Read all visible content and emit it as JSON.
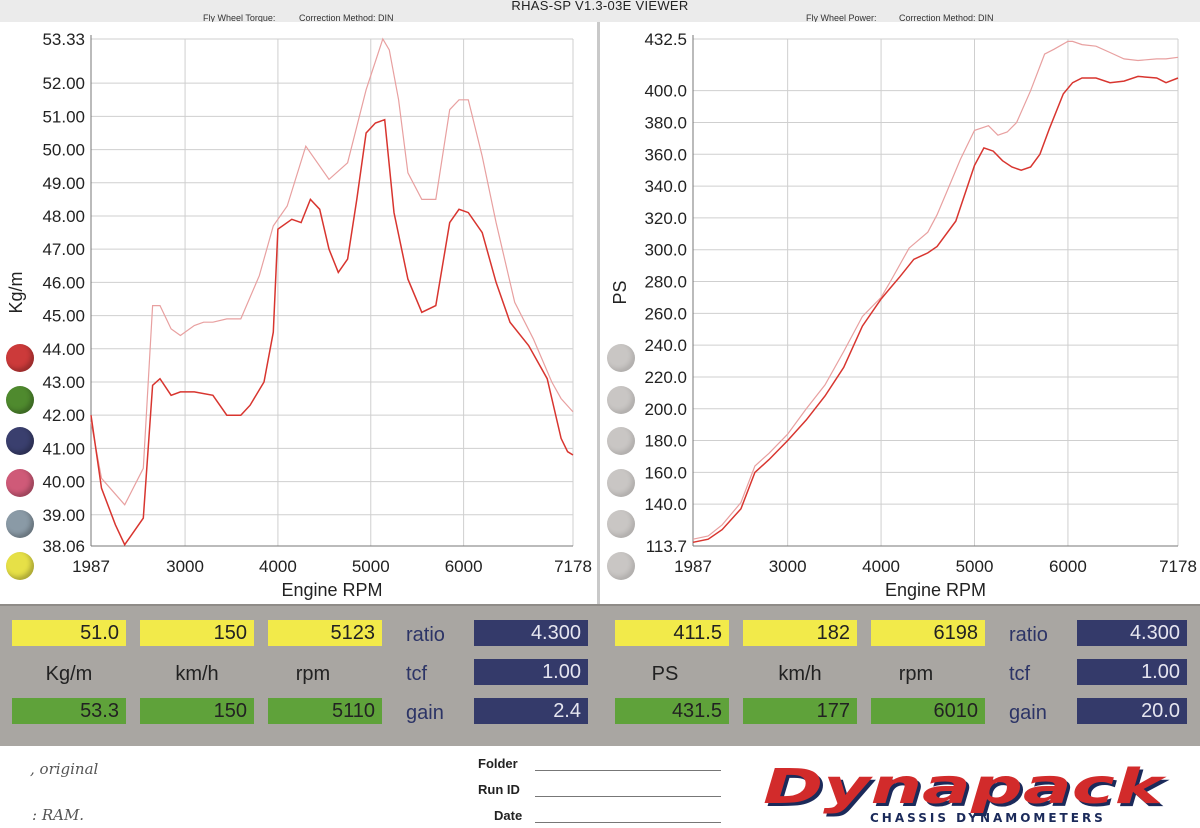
{
  "title": "RHAS-SP V1.3-03E VIEWER",
  "left_header": {
    "measure": "Fly Wheel Torque:",
    "method": "Correction Method: DIN"
  },
  "right_header": {
    "measure": "Fly Wheel Power:",
    "method": "Correction Method: DIN"
  },
  "chart_data": [
    {
      "type": "line",
      "xlabel": "Engine RPM",
      "ylabel": "Kg/m",
      "xlim": [
        1987,
        7178
      ],
      "ylim": [
        38.06,
        53.33
      ],
      "xticks": [
        "1987",
        "3000",
        "4000",
        "5000",
        "6000",
        "7178"
      ],
      "yticks": [
        "53.33",
        "52.00",
        "51.00",
        "50.00",
        "49.00",
        "48.00",
        "47.00",
        "46.00",
        "45.00",
        "44.00",
        "43.00",
        "42.00",
        "41.00",
        "40.00",
        "39.00",
        "38.06"
      ],
      "grid": true,
      "series": [
        {
          "color": "#e8a0a0",
          "x": [
            1987,
            2100,
            2350,
            2550,
            2650,
            2730,
            2850,
            2950,
            3100,
            3200,
            3300,
            3450,
            3600,
            3800,
            3950,
            4100,
            4300,
            4550,
            4750,
            4950,
            5130,
            5200,
            5300,
            5400,
            5550,
            5700,
            5850,
            5950,
            6050,
            6200,
            6350,
            6550,
            6750,
            6950,
            7050,
            7178
          ],
          "values": [
            41.8,
            40.1,
            39.3,
            40.4,
            45.3,
            45.3,
            44.6,
            44.4,
            44.7,
            44.8,
            44.8,
            44.9,
            44.9,
            46.2,
            47.7,
            48.3,
            50.1,
            49.1,
            49.6,
            51.8,
            53.33,
            53.0,
            51.5,
            49.3,
            48.5,
            48.5,
            51.2,
            51.5,
            51.5,
            49.8,
            47.8,
            45.4,
            44.3,
            43.0,
            42.5,
            42.1
          ]
        },
        {
          "color": "#d8352f",
          "x": [
            1987,
            2100,
            2250,
            2350,
            2550,
            2650,
            2730,
            2850,
            2950,
            3100,
            3300,
            3450,
            3600,
            3700,
            3850,
            3950,
            4000,
            4150,
            4250,
            4350,
            4450,
            4550,
            4650,
            4750,
            4850,
            4950,
            5050,
            5150,
            5250,
            5400,
            5550,
            5700,
            5850,
            5950,
            6050,
            6200,
            6350,
            6500,
            6700,
            6900,
            7050,
            7120,
            7178
          ],
          "values": [
            42.0,
            39.8,
            38.7,
            38.1,
            38.9,
            42.9,
            43.1,
            42.6,
            42.7,
            42.7,
            42.6,
            42.0,
            42.0,
            42.3,
            43.0,
            44.5,
            47.6,
            47.9,
            47.8,
            48.5,
            48.2,
            47.0,
            46.3,
            46.7,
            48.5,
            50.5,
            50.8,
            50.9,
            48.1,
            46.1,
            45.1,
            45.3,
            47.8,
            48.2,
            48.1,
            47.5,
            46.0,
            44.8,
            44.1,
            43.1,
            41.3,
            40.9,
            40.8
          ]
        }
      ]
    },
    {
      "type": "line",
      "xlabel": "Engine RPM",
      "ylabel": "PS",
      "xlim": [
        1987,
        7178
      ],
      "ylim": [
        113.7,
        432.5
      ],
      "xticks": [
        "1987",
        "3000",
        "4000",
        "5000",
        "6000",
        "7178"
      ],
      "yticks": [
        "432.5",
        "400.0",
        "380.0",
        "360.0",
        "340.0",
        "320.0",
        "300.0",
        "280.0",
        "260.0",
        "240.0",
        "220.0",
        "200.0",
        "180.0",
        "160.0",
        "140.0",
        "113.7"
      ],
      "grid": true,
      "series": [
        {
          "color": "#e8a0a0",
          "x": [
            1987,
            2150,
            2300,
            2500,
            2650,
            2800,
            3000,
            3200,
            3400,
            3600,
            3800,
            4000,
            4100,
            4300,
            4500,
            4600,
            4700,
            4850,
            5000,
            5150,
            5250,
            5350,
            5450,
            5600,
            5750,
            5850,
            6000,
            6050,
            6150,
            6300,
            6450,
            6600,
            6750,
            6950,
            7050,
            7178
          ],
          "values": [
            118,
            120,
            127,
            141,
            164,
            172,
            184,
            200,
            215,
            236,
            258,
            270,
            280,
            301,
            311,
            322,
            336,
            357,
            375,
            378,
            372,
            374,
            380,
            400,
            423,
            426,
            431,
            431,
            429,
            428,
            424,
            420,
            419,
            420,
            420,
            421
          ]
        },
        {
          "color": "#d8352f",
          "x": [
            1987,
            2150,
            2300,
            2500,
            2650,
            2800,
            3000,
            3200,
            3400,
            3600,
            3800,
            4000,
            4100,
            4200,
            4350,
            4500,
            4600,
            4800,
            5000,
            5100,
            5200,
            5300,
            5400,
            5500,
            5600,
            5700,
            5800,
            5950,
            6050,
            6150,
            6300,
            6450,
            6600,
            6750,
            6950,
            7050,
            7178
          ],
          "values": [
            116,
            118,
            124,
            137,
            160,
            168,
            180,
            193,
            208,
            226,
            252,
            269,
            276,
            283,
            294,
            298,
            302,
            318,
            353,
            364,
            362,
            356,
            352,
            350,
            352,
            360,
            376,
            398,
            405,
            408,
            408,
            405,
            406,
            409,
            408,
            405,
            408
          ]
        }
      ]
    }
  ],
  "legend_circles_left": [
    "#cc3a3a",
    "#4f8a2e",
    "#3a3f6e",
    "#cf5a78",
    "#8a9aa6",
    "#e6e047"
  ],
  "legend_circle_right_color": "#c9c6c4",
  "left_readout": {
    "top": [
      "51.0",
      "150",
      "5123"
    ],
    "units": [
      "Kg/m",
      "km/h",
      "rpm"
    ],
    "bottom": [
      "53.3",
      "150",
      "5110"
    ],
    "params": [
      "ratio",
      "tcf",
      "gain"
    ],
    "param_values": [
      "4.300",
      "1.00",
      "2.4"
    ]
  },
  "right_readout": {
    "top": [
      "411.5",
      "182",
      "6198"
    ],
    "units": [
      "PS",
      "km/h",
      "rpm"
    ],
    "bottom": [
      "431.5",
      "177",
      "6010"
    ],
    "params": [
      "ratio",
      "tcf",
      "gain"
    ],
    "param_values": [
      "4.300",
      "1.00",
      "20.0"
    ]
  },
  "footer": {
    "folder_label": "Folder",
    "runid_label": "Run ID",
    "date_label": "Date",
    "note1": ", original",
    "note2": ": RAM.",
    "logo_text": "Dynapack",
    "logo_sub": "CHASSIS DYNAMOMETERS"
  }
}
